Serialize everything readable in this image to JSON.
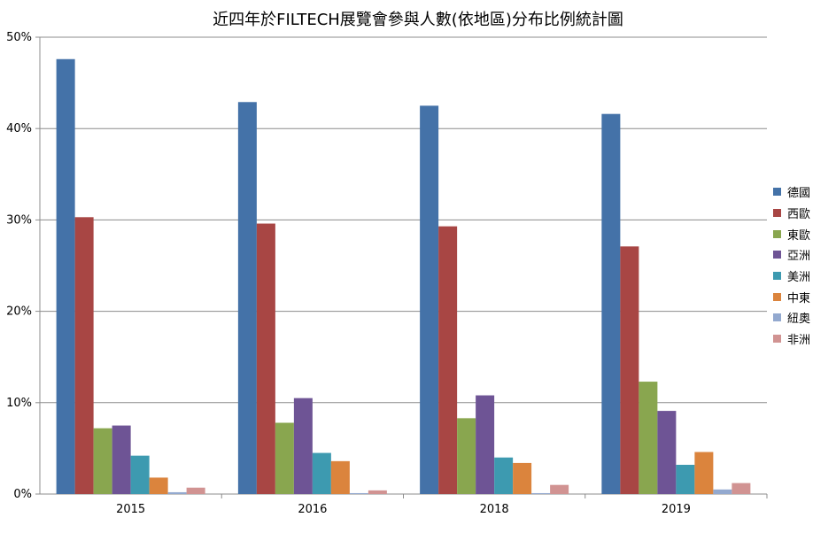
{
  "chart_data": {
    "type": "bar",
    "title": "近四年於FILTECH展覽會參與人數(依地區)分布比例統計圖",
    "categories": [
      "2015",
      "2016",
      "2018",
      "2019"
    ],
    "xlabel": "",
    "ylabel": "",
    "ylim": [
      0,
      50
    ],
    "yticks": [
      "0%",
      "10%",
      "20%",
      "30%",
      "40%",
      "50%"
    ],
    "grid": true,
    "legend_position": "right",
    "series": [
      {
        "name": "德國",
        "color": "#4472a8",
        "values": [
          47.6,
          42.9,
          42.5,
          41.6
        ]
      },
      {
        "name": "西歐",
        "color": "#a84644",
        "values": [
          30.3,
          29.6,
          29.3,
          27.1
        ]
      },
      {
        "name": "東歐",
        "color": "#89a64f",
        "values": [
          7.2,
          7.8,
          8.3,
          12.3
        ]
      },
      {
        "name": "亞洲",
        "color": "#6e5495",
        "values": [
          7.5,
          10.5,
          10.8,
          9.1
        ]
      },
      {
        "name": "美洲",
        "color": "#3d9ab0",
        "values": [
          4.2,
          4.5,
          4.0,
          3.2
        ]
      },
      {
        "name": "中東",
        "color": "#db843d",
        "values": [
          1.8,
          3.6,
          3.4,
          4.6
        ]
      },
      {
        "name": "紐奧",
        "color": "#93a9cf",
        "values": [
          0.2,
          0.1,
          0.1,
          0.5
        ]
      },
      {
        "name": "非洲",
        "color": "#d19392",
        "values": [
          0.7,
          0.4,
          1.0,
          1.2
        ]
      }
    ]
  }
}
